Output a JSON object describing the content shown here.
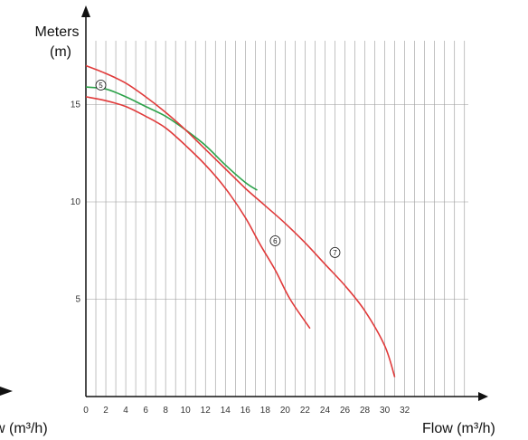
{
  "chart_data": {
    "type": "line",
    "ylabel_line1": "Meters",
    "ylabel_line2": "(m)",
    "xlabel": "Flow (m³/h)",
    "xlabel_clipped": "w (m³/h)",
    "xlim": [
      0,
      38
    ],
    "ylim": [
      0,
      18
    ],
    "grid": true,
    "x_ticks": [
      0,
      2,
      4,
      6,
      8,
      10,
      12,
      14,
      16,
      18,
      20,
      22,
      24,
      26,
      28,
      30,
      32
    ],
    "y_ticks": [
      5,
      10,
      15
    ],
    "series": [
      {
        "marker": "5",
        "color": "#e03a3a",
        "x": [
          0,
          2,
          4,
          6,
          8,
          10,
          12,
          14,
          16,
          17.5,
          19,
          20.5,
          22.5
        ],
        "y": [
          15.4,
          15.2,
          14.9,
          14.4,
          13.8,
          12.9,
          11.9,
          10.7,
          9.2,
          7.8,
          6.5,
          5.0,
          3.5
        ],
        "marker_at": [
          1.5,
          16.0
        ]
      },
      {
        "marker": "6",
        "color": "#2ca24a",
        "x": [
          0,
          2,
          4,
          6,
          8,
          10,
          12,
          14,
          16,
          17.2
        ],
        "y": [
          15.9,
          15.8,
          15.4,
          14.9,
          14.4,
          13.7,
          12.9,
          11.9,
          11.0,
          10.6
        ],
        "marker_at": [
          19,
          8.0
        ]
      },
      {
        "marker": "7",
        "color": "#e03a3a",
        "x": [
          0,
          2,
          4,
          6,
          8,
          10,
          12,
          14,
          16,
          18,
          20,
          22,
          24,
          26,
          28,
          30,
          31
        ],
        "y": [
          17.0,
          16.6,
          16.1,
          15.4,
          14.6,
          13.7,
          12.7,
          11.7,
          10.7,
          9.8,
          8.9,
          7.9,
          6.8,
          5.7,
          4.4,
          2.6,
          1.0
        ],
        "marker_at": [
          25,
          7.4
        ]
      }
    ]
  }
}
